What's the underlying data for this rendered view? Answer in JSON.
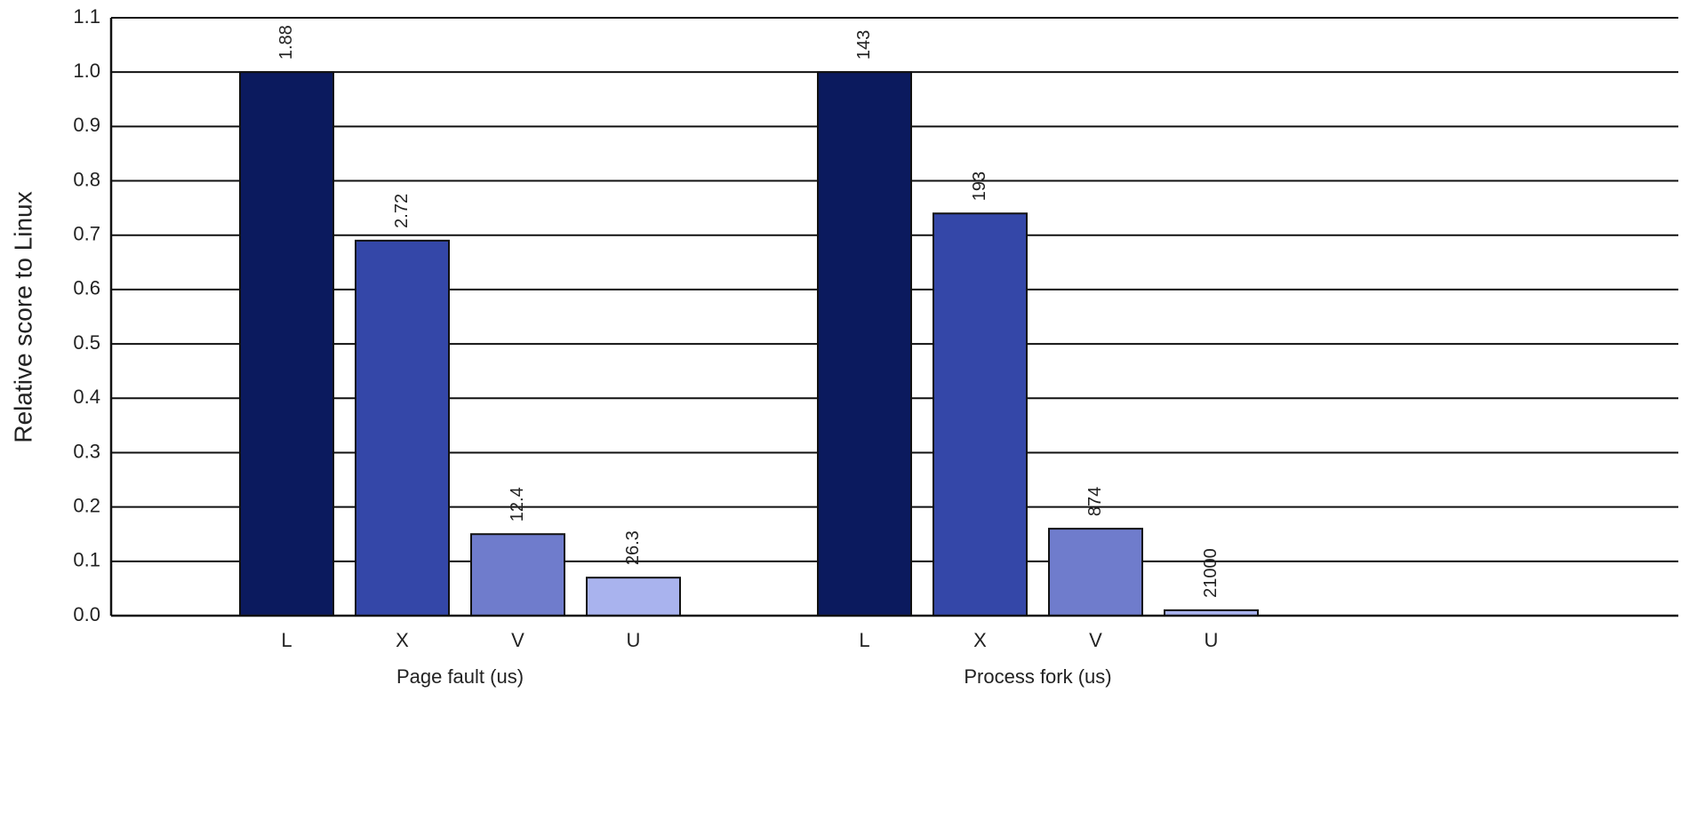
{
  "chart_data": {
    "type": "bar",
    "ylabel": "Relative score to Linux",
    "ylim": [
      0,
      1.1
    ],
    "yticks": [
      {
        "value": 0,
        "label": "0.0"
      },
      {
        "value": 0.1,
        "label": "0.1"
      },
      {
        "value": 0.2,
        "label": "0.2"
      },
      {
        "value": 0.3,
        "label": "0.3"
      },
      {
        "value": 0.4,
        "label": "0.4"
      },
      {
        "value": 0.5,
        "label": "0.5"
      },
      {
        "value": 0.6,
        "label": "0.6"
      },
      {
        "value": 0.7,
        "label": "0.7"
      },
      {
        "value": 0.8,
        "label": "0.8"
      },
      {
        "value": 0.9,
        "label": "0.9"
      },
      {
        "value": 1,
        "label": "1.0"
      },
      {
        "value": 1.1,
        "label": "1.1"
      }
    ],
    "grid": true,
    "groups": [
      {
        "name": "Page fault (us)",
        "categories": [
          "L",
          "X",
          "V",
          "U"
        ],
        "colors": [
          "#0b1a5e",
          "#3447a8",
          "#6f7ccc",
          "#a9b3ee"
        ],
        "values": [
          1.0,
          0.69,
          0.15,
          0.07
        ],
        "times": [
          1.88,
          2.72,
          12.4,
          26.3
        ]
      },
      {
        "name": "Process fork (us)",
        "categories": [
          "L",
          "X",
          "V",
          "U"
        ],
        "colors": [
          "#0b1a5e",
          "#3447a8",
          "#6f7ccc",
          "#a9b3ee"
        ],
        "values": [
          1.0,
          0.74,
          0.16,
          0.01
        ],
        "times": [
          143,
          193,
          874,
          21000
        ]
      }
    ]
  }
}
